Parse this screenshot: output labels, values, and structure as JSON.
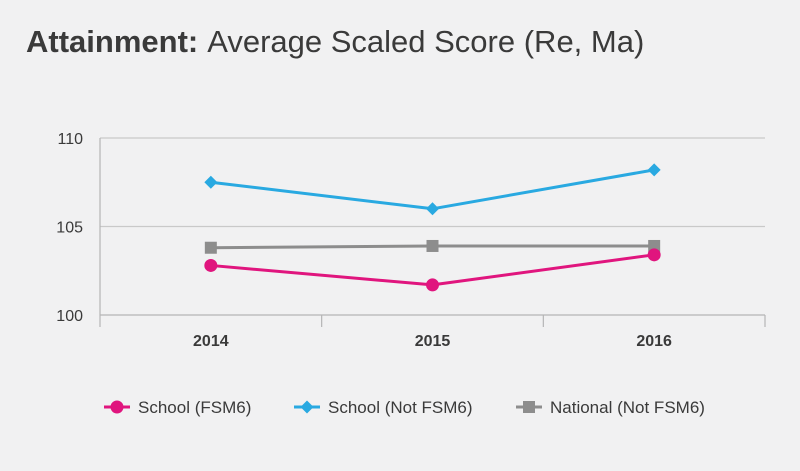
{
  "title": {
    "bold": "Attainment:",
    "rest": "Average Scaled Score (Re, Ma)"
  },
  "chart_data": {
    "type": "line",
    "categories": [
      "2014",
      "2015",
      "2016"
    ],
    "ylim": [
      100,
      110
    ],
    "yticks": [
      100,
      105,
      110
    ],
    "grid": true,
    "legend_position": "bottom",
    "series": [
      {
        "name": "School (FSM6)",
        "values": [
          102.8,
          101.7,
          103.4
        ],
        "color": "#e0157e",
        "marker": "circle"
      },
      {
        "name": "School (Not FSM6)",
        "values": [
          107.5,
          106.0,
          108.2
        ],
        "color": "#29a9e1",
        "marker": "diamond"
      },
      {
        "name": "National (Not FSM6)",
        "values": [
          103.8,
          103.9,
          103.9
        ],
        "color": "#8d8d8d",
        "marker": "square"
      }
    ]
  }
}
